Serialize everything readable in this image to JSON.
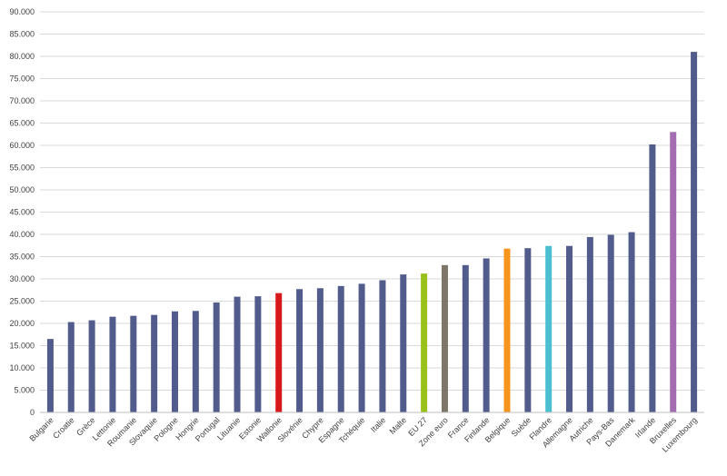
{
  "chart_data": {
    "type": "bar",
    "title": "",
    "xlabel": "",
    "ylabel": "",
    "ylim": [
      0,
      90000
    ],
    "yticks": [
      0,
      5000,
      10000,
      15000,
      20000,
      25000,
      30000,
      35000,
      40000,
      45000,
      50000,
      55000,
      60000,
      65000,
      70000,
      75000,
      80000,
      85000,
      90000
    ],
    "ytick_labels": [
      "0",
      "5.000",
      "10.000",
      "15.000",
      "20.000",
      "25.000",
      "30.000",
      "35.000",
      "40.000",
      "45.000",
      "50.000",
      "55.000",
      "60.000",
      "65.000",
      "70.000",
      "75.000",
      "80.000",
      "85.000",
      "90.000"
    ],
    "grid": "horizontal",
    "categories": [
      "Bulgarie",
      "Croatie",
      "Grèce",
      "Lettonie",
      "Roumanie",
      "Slovaquie",
      "Pologne",
      "Hongrie",
      "Portugal",
      "Lituanie",
      "Estonie",
      "Wallonie",
      "Slovénie",
      "Chypre",
      "Espagne",
      "Tchéquie",
      "Italie",
      "Malte",
      "EU 27",
      "Zone euro",
      "France",
      "Finlande",
      "Belgique",
      "Suède",
      "Flandre",
      "Allemagne",
      "Autriche",
      "Pays-Bas",
      "Danemark",
      "Irlande",
      "Bruxelles",
      "Luxembourg"
    ],
    "values": [
      16500,
      20300,
      20700,
      21500,
      21700,
      21900,
      22700,
      22800,
      24700,
      26000,
      26100,
      26800,
      27700,
      27900,
      28400,
      28900,
      29700,
      31000,
      31200,
      33100,
      33100,
      34600,
      36800,
      36900,
      37400,
      37400,
      39400,
      39900,
      40500,
      60200,
      63000,
      81000
    ],
    "colors": [
      "#515c8c",
      "#515c8c",
      "#515c8c",
      "#515c8c",
      "#515c8c",
      "#515c8c",
      "#515c8c",
      "#515c8c",
      "#515c8c",
      "#515c8c",
      "#515c8c",
      "#d7191c",
      "#515c8c",
      "#515c8c",
      "#515c8c",
      "#515c8c",
      "#515c8c",
      "#515c8c",
      "#99c11a",
      "#7d7669",
      "#515c8c",
      "#515c8c",
      "#f7941d",
      "#515c8c",
      "#4bbfd0",
      "#515c8c",
      "#515c8c",
      "#515c8c",
      "#515c8c",
      "#515c8c",
      "#a36cb0",
      "#515c8c"
    ]
  }
}
